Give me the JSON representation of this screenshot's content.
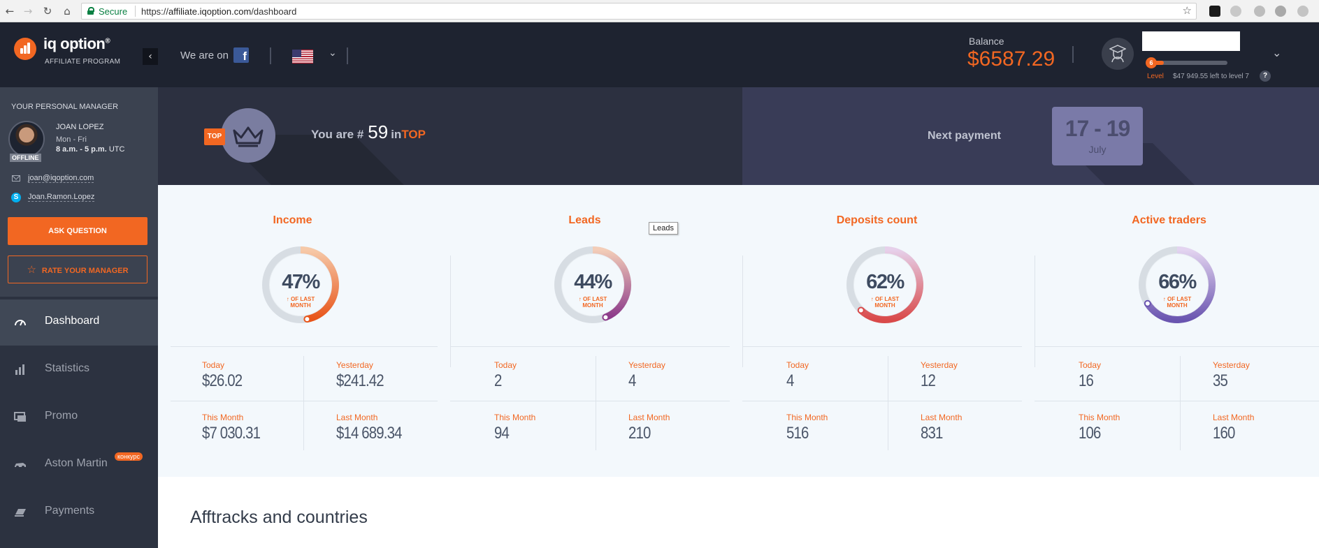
{
  "browser": {
    "secure_label": "Secure",
    "url_scheme": "https://",
    "url_host": "affiliate.iqoption.com",
    "url_path": "/dashboard"
  },
  "header": {
    "logo_text": "iq option",
    "logo_reg": "®",
    "logo_sub": "AFFILIATE PROGRAM",
    "we_are_on": "We are on",
    "facebook_glyph": "f",
    "language_icon": "us-flag-icon",
    "balance_label": "Balance",
    "balance_value": "$6587.29",
    "level_number": "6",
    "level_progress": 0.2,
    "level_label": "Level",
    "level_remaining": "$47 949.55 left to level 7",
    "help_glyph": "?"
  },
  "manager": {
    "title": "YOUR PERSONAL MANAGER",
    "name": "JOAN LOPEZ",
    "days": "Mon - Fri",
    "hours": "8 a.m. - 5 p.m.",
    "timezone": "UTC",
    "status": "OFFLINE",
    "email": "joan@iqoption.com",
    "skype": "Joan.Ramon.Lopez",
    "ask_button": "ASK QUESTION",
    "rate_button": "RATE YOUR MANAGER"
  },
  "nav": {
    "items": [
      {
        "label": "Dashboard",
        "icon": "speedometer-icon",
        "active": true
      },
      {
        "label": "Statistics",
        "icon": "bar-chart-icon",
        "active": false
      },
      {
        "label": "Promo",
        "icon": "promo-icon",
        "active": false
      },
      {
        "label": "Aston Martin",
        "icon": "car-icon",
        "active": false,
        "badge": "конкурс"
      },
      {
        "label": "Payments",
        "icon": "money-icon",
        "active": false
      }
    ]
  },
  "banner": {
    "top_badge": "TOP",
    "you_are": "You are #",
    "rank": "59",
    "in_word": "in",
    "top_word": "TOP",
    "next_payment": "Next payment",
    "payment_range": "17 - 19",
    "payment_month": "July"
  },
  "stats": [
    {
      "title": "Income",
      "percent": "47%",
      "pct_value": 47,
      "note_line1": "↑ OF LAST",
      "note_line2": "MONTH",
      "color_start": "#f6c9a8",
      "color_end": "#e8551a",
      "today_label": "Today",
      "today": "$26.02",
      "yesterday_label": "Yesterday",
      "yesterday": "$241.42",
      "this_month_label": "This Month",
      "this_month": "$7 030.31",
      "last_month_label": "Last Month",
      "last_month": "$14 689.34"
    },
    {
      "title": "Leads",
      "percent": "44%",
      "pct_value": 44,
      "note_line1": "↑ OF LAST",
      "note_line2": "MONTH",
      "color_start": "#f3cdb8",
      "color_end": "#8c3a8a",
      "today_label": "Today",
      "today": "2",
      "yesterday_label": "Yesterday",
      "yesterday": "4",
      "this_month_label": "This Month",
      "this_month": "94",
      "last_month_label": "Last Month",
      "last_month": "210"
    },
    {
      "title": "Deposits count",
      "percent": "62%",
      "pct_value": 62,
      "note_line1": "↑ OF LAST",
      "note_line2": "MONTH",
      "color_start": "#e6d0ea",
      "color_end": "#d94a4a",
      "today_label": "Today",
      "today": "4",
      "yesterday_label": "Yesterday",
      "yesterday": "12",
      "this_month_label": "This Month",
      "this_month": "516",
      "last_month_label": "Last Month",
      "last_month": "831"
    },
    {
      "title": "Active traders",
      "percent": "66%",
      "pct_value": 66,
      "note_line1": "↑ OF LAST",
      "note_line2": "MONTH",
      "color_start": "#e3d4f0",
      "color_end": "#6a55b0",
      "today_label": "Today",
      "today": "16",
      "yesterday_label": "Yesterday",
      "yesterday": "35",
      "this_month_label": "This Month",
      "this_month": "106",
      "last_month_label": "Last Month",
      "last_month": "160"
    }
  ],
  "tooltip": "Leads",
  "section_title": "Afftracks and countries",
  "colors": {
    "accent": "#f26722",
    "header_bg": "#1e2330",
    "sidebar_bg": "#2c3240"
  }
}
